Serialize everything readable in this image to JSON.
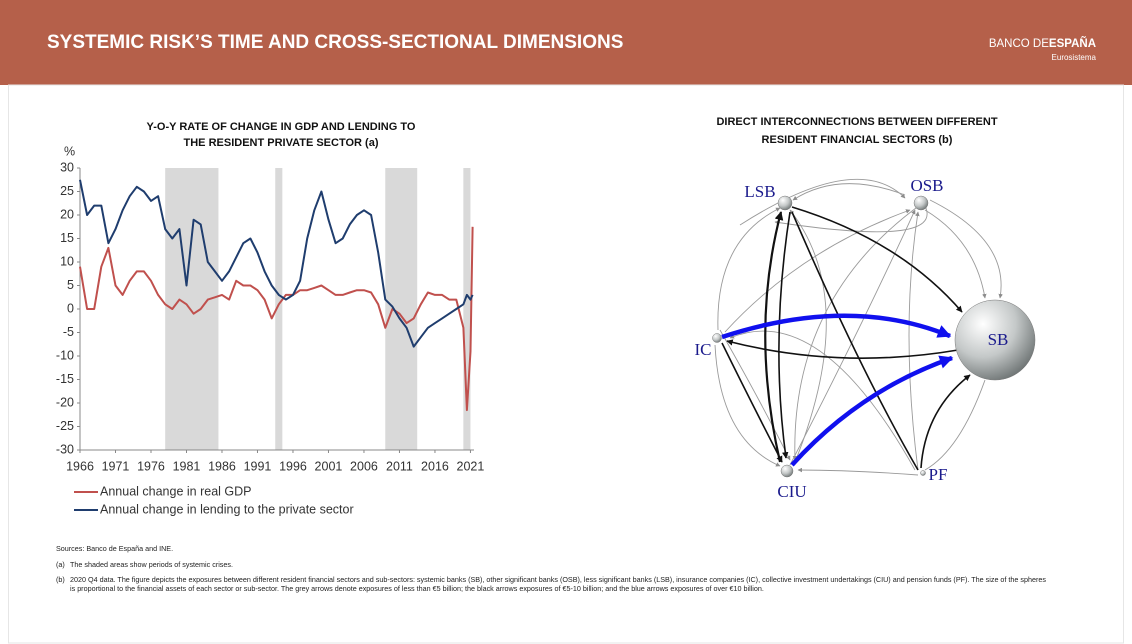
{
  "header": {
    "title": "SYSTEMIC RISK’S TIME AND CROSS-SECTIONAL DIMENSIONS",
    "brand": [
      "BANCO DE",
      "ESPAÑA"
    ],
    "brand_sub": "Eurosistema"
  },
  "chart_data": {
    "type": "line",
    "title": [
      "Y-O-Y RATE OF CHANGE IN GDP AND LENDING TO",
      "THE RESIDENT PRIVATE SECTOR (a)"
    ],
    "y_label": "%",
    "x": [
      1966,
      1967,
      1968,
      1969,
      1970,
      1971,
      1972,
      1973,
      1974,
      1975,
      1976,
      1977,
      1978,
      1979,
      1980,
      1981,
      1982,
      1983,
      1984,
      1985,
      1986,
      1987,
      1988,
      1989,
      1990,
      1991,
      1992,
      1993,
      1994,
      1995,
      1996,
      1997,
      1998,
      1999,
      2000,
      2001,
      2002,
      2003,
      2004,
      2005,
      2006,
      2007,
      2008,
      2009,
      2010,
      2011,
      2012,
      2013,
      2014,
      2015,
      2016,
      2017,
      2018,
      2019,
      2020,
      2020.5,
      2021,
      2021.3
    ],
    "series": [
      {
        "name": "Annual change in real GDP",
        "color": "#c0504d",
        "values": [
          9,
          0,
          0,
          9,
          13,
          5,
          3,
          6,
          8,
          8,
          6,
          3,
          1,
          0,
          2,
          1,
          -1,
          0,
          2,
          2.5,
          3,
          2,
          6,
          5,
          5,
          4,
          2,
          -2,
          1,
          3,
          3,
          4,
          4,
          4.5,
          5,
          4,
          3,
          3,
          3.5,
          4,
          4,
          3.5,
          1,
          -4,
          0,
          -1,
          -3,
          -2,
          1,
          3.5,
          3,
          3,
          2,
          2,
          -4,
          -21.5,
          -9,
          17.5
        ]
      },
      {
        "name": "Annual change in lending to the private sector",
        "color": "#1f3d6e",
        "values": [
          27.5,
          20,
          22,
          22,
          14,
          17,
          21,
          24,
          26,
          25,
          23,
          24,
          17,
          15,
          17,
          5,
          19,
          18,
          10,
          8,
          6,
          8,
          11,
          14,
          15,
          12,
          8,
          5,
          3,
          2,
          3,
          6,
          15,
          21,
          25,
          19,
          14,
          15,
          18,
          20,
          21,
          20,
          12,
          2,
          0.5,
          -2,
          -4,
          -8,
          -6,
          -4,
          -3,
          -2,
          -1,
          0,
          1,
          3,
          2,
          3
        ]
      }
    ],
    "shaded_periods": [
      [
        1978,
        1985.5
      ],
      [
        1993.5,
        1994.5
      ],
      [
        2009,
        2013.5
      ],
      [
        2020,
        2021
      ]
    ],
    "shade_color": "#d9d9d9",
    "xlim": [
      1966,
      2021.5
    ],
    "xticks": [
      1966,
      1971,
      1976,
      1981,
      1986,
      1991,
      1996,
      2001,
      2006,
      2011,
      2016,
      2021
    ],
    "ylim": [
      -30,
      30
    ],
    "yticks": [
      -30,
      -25,
      -20,
      -15,
      -10,
      -5,
      0,
      5,
      10,
      15,
      20,
      25,
      30
    ],
    "grid": false
  },
  "diagram": {
    "title": [
      "DIRECT INTERCONNECTIONS BETWEEN DIFFERENT",
      "RESIDENT FINANCIAL SECTORS (b)"
    ],
    "nodes": [
      {
        "label": "LSB"
      },
      {
        "label": "OSB"
      },
      {
        "label": "SB"
      },
      {
        "label": "IC"
      },
      {
        "label": "CIU"
      },
      {
        "label": "PF"
      }
    ]
  },
  "footnotes": {
    "sources": "Sources: Banco de España and INE.",
    "notes": [
      {
        "label": "(a)",
        "text": "The shaded areas show periods of systemic crises."
      },
      {
        "label": "(b)",
        "text": "2020 Q4 data. The figure depicts the exposures between different resident financial sectors and sub-sectors: systemic banks (SB), other significant banks (OSB), less significant banks (LSB), insurance companies (IC), collective investment undertakings (CIU) and pension funds (PF). The size of the spheres is proportional to the financial assets of each sector or sub-sector. The grey arrows denote exposures of less than €5 billion; the black arrows exposures of €5-10 billion; and the blue arrows exposures of over €10 billion."
      }
    ]
  }
}
